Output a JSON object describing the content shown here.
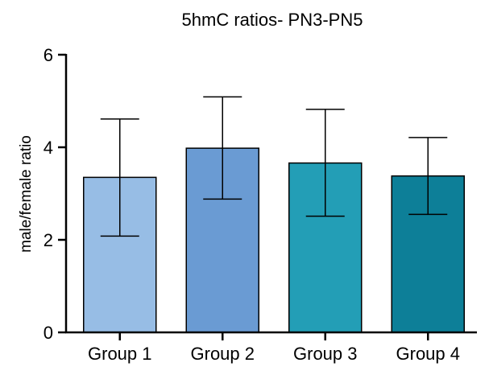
{
  "chart_data": {
    "type": "bar",
    "title": "5hmC ratios- PN3-PN5",
    "xlabel": "",
    "ylabel": "male/female ratio",
    "ylim": [
      0,
      6
    ],
    "yticks": [
      0,
      2,
      4,
      6
    ],
    "categories": [
      "Group 1",
      "Group 2",
      "Group 3",
      "Group 4"
    ],
    "values": [
      3.35,
      3.98,
      3.66,
      3.38
    ],
    "error_low": [
      2.08,
      2.88,
      2.51,
      2.55
    ],
    "error_high": [
      4.61,
      5.09,
      4.82,
      4.21
    ],
    "colors": [
      "#97bde5",
      "#6a9bd3",
      "#239eb6",
      "#0d7f98"
    ],
    "grid": false,
    "legend": "none"
  }
}
